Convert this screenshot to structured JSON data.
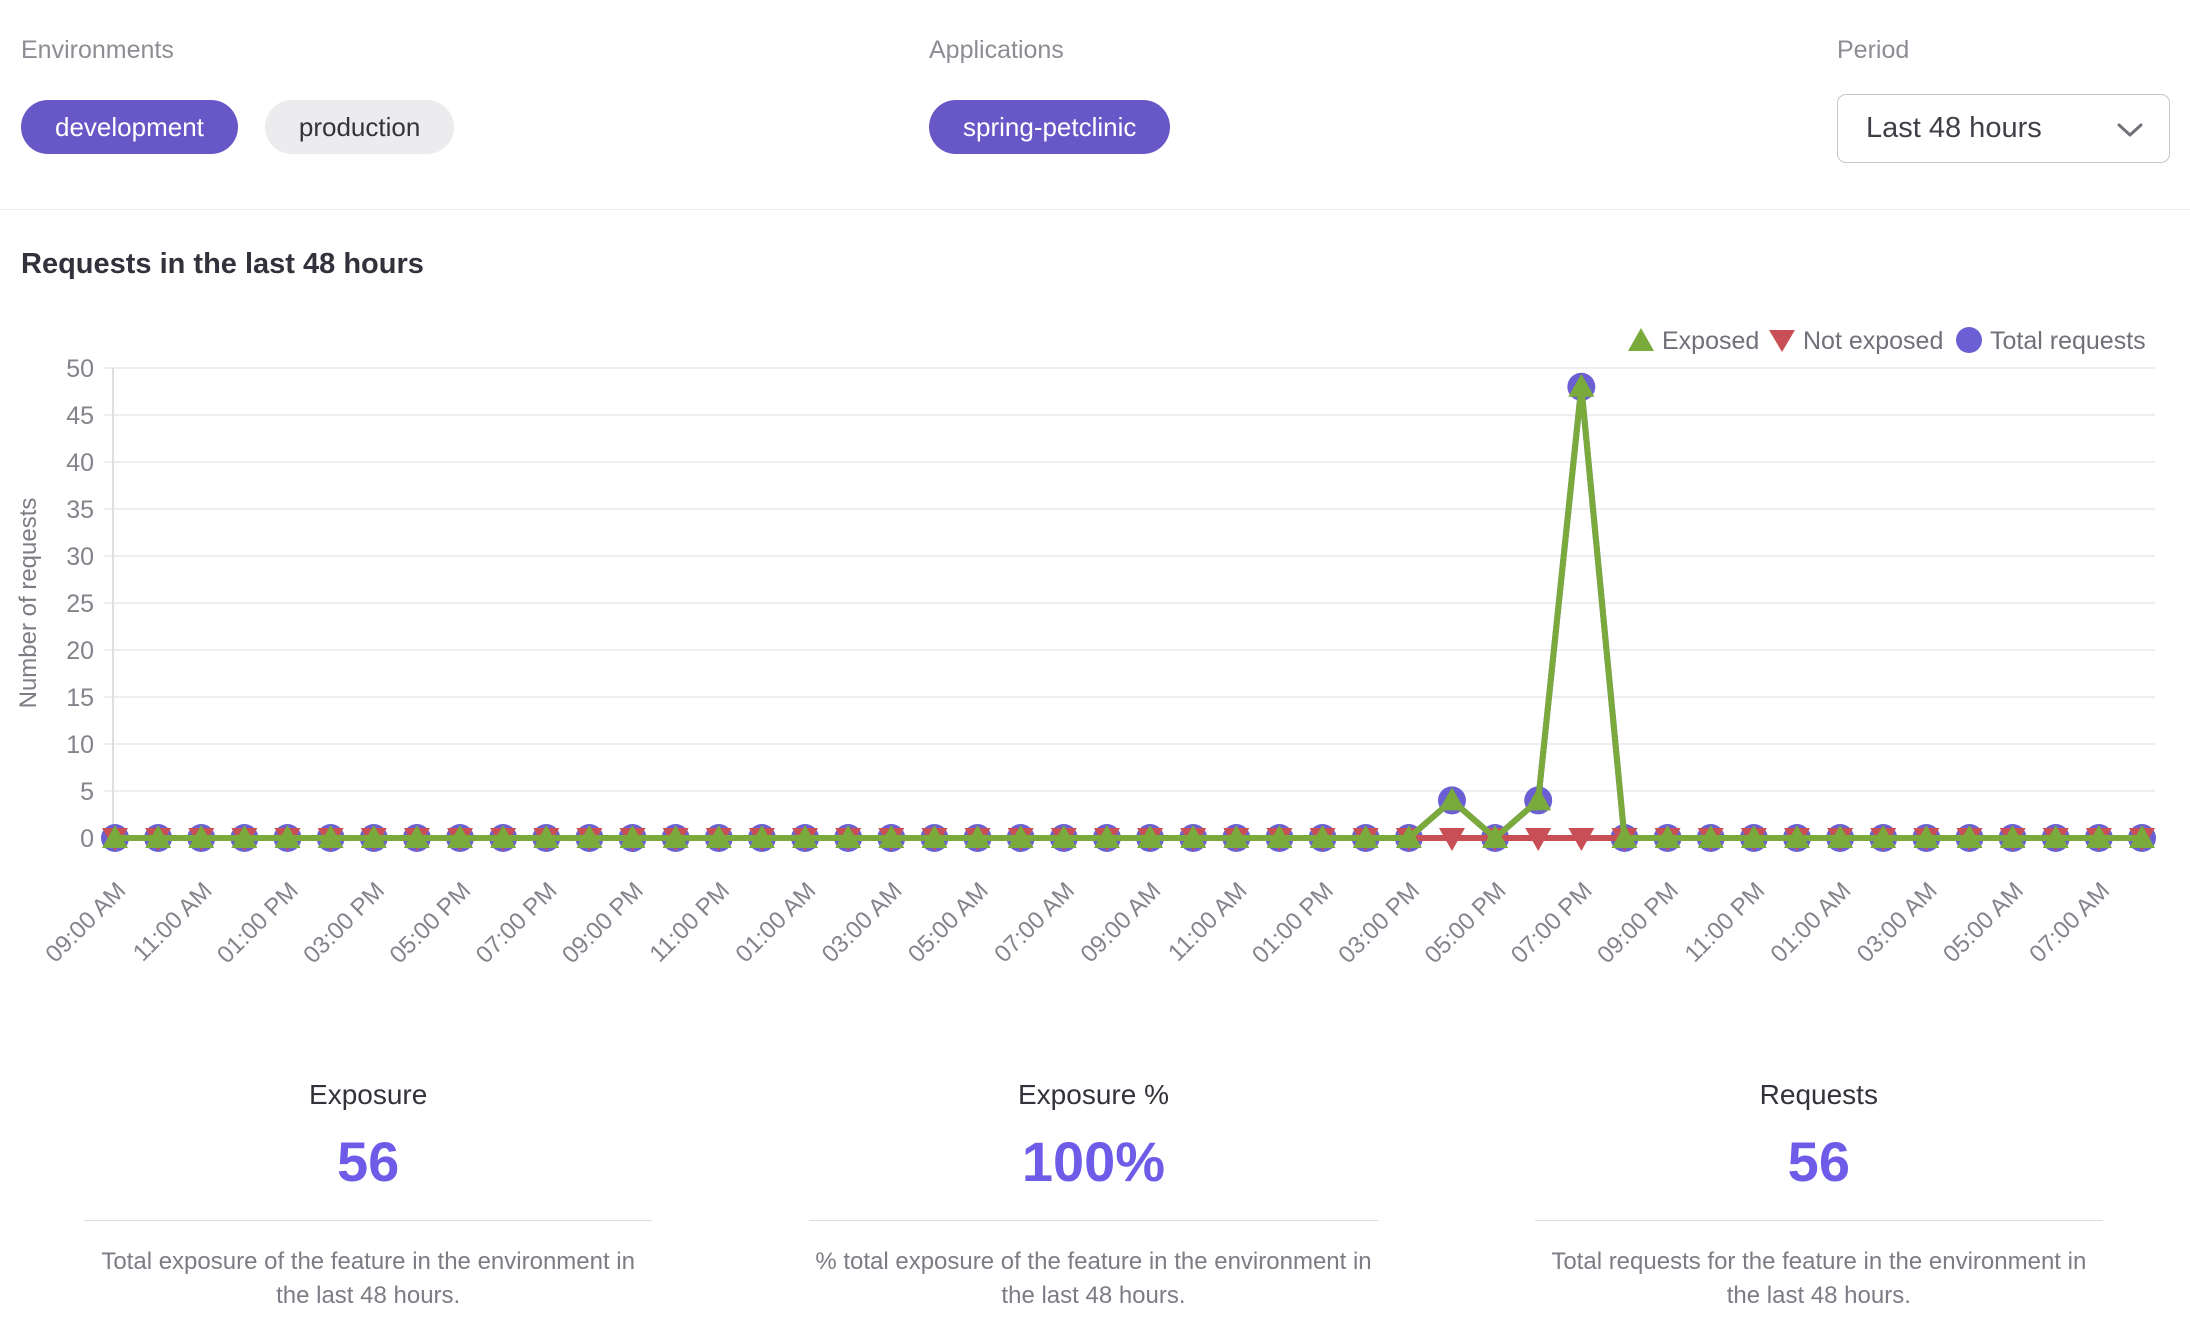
{
  "filters": {
    "environments": {
      "label": "Environments",
      "options": [
        {
          "label": "development",
          "selected": true
        },
        {
          "label": "production",
          "selected": false
        }
      ]
    },
    "applications": {
      "label": "Applications",
      "options": [
        {
          "label": "spring-petclinic",
          "selected": true
        }
      ]
    },
    "period": {
      "label": "Period",
      "value": "Last 48 hours"
    }
  },
  "chart_title": "Requests in the last 48 hours",
  "chart_data": {
    "type": "line",
    "title": "Requests in the last 48 hours",
    "xlabel": "",
    "ylabel": "Number of requests",
    "ylim": [
      0,
      50
    ],
    "yticks": [
      0,
      5,
      10,
      15,
      20,
      25,
      30,
      35,
      40,
      45,
      50
    ],
    "grid": "horizontal",
    "legend_position": "top-right",
    "x": [
      "09:00 AM",
      "10:00 AM",
      "11:00 AM",
      "12:00 PM",
      "01:00 PM",
      "02:00 PM",
      "03:00 PM",
      "04:00 PM",
      "05:00 PM",
      "06:00 PM",
      "07:00 PM",
      "08:00 PM",
      "09:00 PM",
      "10:00 PM",
      "11:00 PM",
      "12:00 AM",
      "01:00 AM",
      "02:00 AM",
      "03:00 AM",
      "04:00 AM",
      "05:00 AM",
      "06:00 AM",
      "07:00 AM",
      "08:00 AM",
      "09:00 AM",
      "10:00 AM",
      "11:00 AM",
      "12:00 PM",
      "01:00 PM",
      "02:00 PM",
      "03:00 PM",
      "04:00 PM",
      "05:00 PM",
      "06:00 PM",
      "07:00 PM",
      "08:00 PM",
      "09:00 PM",
      "10:00 PM",
      "11:00 PM",
      "12:00 AM",
      "01:00 AM",
      "02:00 AM",
      "03:00 AM",
      "04:00 AM",
      "05:00 AM",
      "06:00 AM",
      "07:00 AM",
      "08:00 AM"
    ],
    "x_tick_labels": [
      "09:00 AM",
      "11:00 AM",
      "01:00 PM",
      "03:00 PM",
      "05:00 PM",
      "07:00 PM",
      "09:00 PM",
      "11:00 PM",
      "01:00 AM",
      "03:00 AM",
      "05:00 AM",
      "07:00 AM",
      "09:00 AM",
      "11:00 AM",
      "01:00 PM",
      "03:00 PM",
      "05:00 PM",
      "07:00 PM",
      "09:00 PM",
      "11:00 PM",
      "01:00 AM",
      "03:00 AM",
      "05:00 AM",
      "07:00 AM"
    ],
    "series": [
      {
        "name": "Exposed",
        "marker": "triangle-up",
        "color": "#7aa93c",
        "values": [
          0,
          0,
          0,
          0,
          0,
          0,
          0,
          0,
          0,
          0,
          0,
          0,
          0,
          0,
          0,
          0,
          0,
          0,
          0,
          0,
          0,
          0,
          0,
          0,
          0,
          0,
          0,
          0,
          0,
          0,
          0,
          4,
          0,
          4,
          48,
          0,
          0,
          0,
          0,
          0,
          0,
          0,
          0,
          0,
          0,
          0,
          0,
          0
        ]
      },
      {
        "name": "Not exposed",
        "marker": "triangle-down",
        "color": "#c94f56",
        "values": [
          0,
          0,
          0,
          0,
          0,
          0,
          0,
          0,
          0,
          0,
          0,
          0,
          0,
          0,
          0,
          0,
          0,
          0,
          0,
          0,
          0,
          0,
          0,
          0,
          0,
          0,
          0,
          0,
          0,
          0,
          0,
          0,
          0,
          0,
          0,
          0,
          0,
          0,
          0,
          0,
          0,
          0,
          0,
          0,
          0,
          0,
          0,
          0
        ]
      },
      {
        "name": "Total requests",
        "marker": "circle",
        "color": "#6a60d4",
        "values": [
          0,
          0,
          0,
          0,
          0,
          0,
          0,
          0,
          0,
          0,
          0,
          0,
          0,
          0,
          0,
          0,
          0,
          0,
          0,
          0,
          0,
          0,
          0,
          0,
          0,
          0,
          0,
          0,
          0,
          0,
          0,
          4,
          0,
          4,
          48,
          0,
          0,
          0,
          0,
          0,
          0,
          0,
          0,
          0,
          0,
          0,
          0,
          0
        ]
      }
    ]
  },
  "stats": [
    {
      "title": "Exposure",
      "value": "56",
      "description": "Total exposure of the feature in the environment in the last 48 hours."
    },
    {
      "title": "Exposure %",
      "value": "100%",
      "description": "% total exposure of the feature in the environment in the last 48 hours."
    },
    {
      "title": "Requests",
      "value": "56",
      "description": "Total requests for the feature in the environment in the last 48 hours."
    }
  ],
  "colors": {
    "accent_pill": "#6857c6",
    "accent_number": "#6e5ce8",
    "exposed_green": "#7aa93c",
    "not_exposed_red": "#c94f56",
    "total_requests_purple": "#6a60d4",
    "grid_gray": "#e8e8ec",
    "text_gray": "#7c7c84"
  }
}
